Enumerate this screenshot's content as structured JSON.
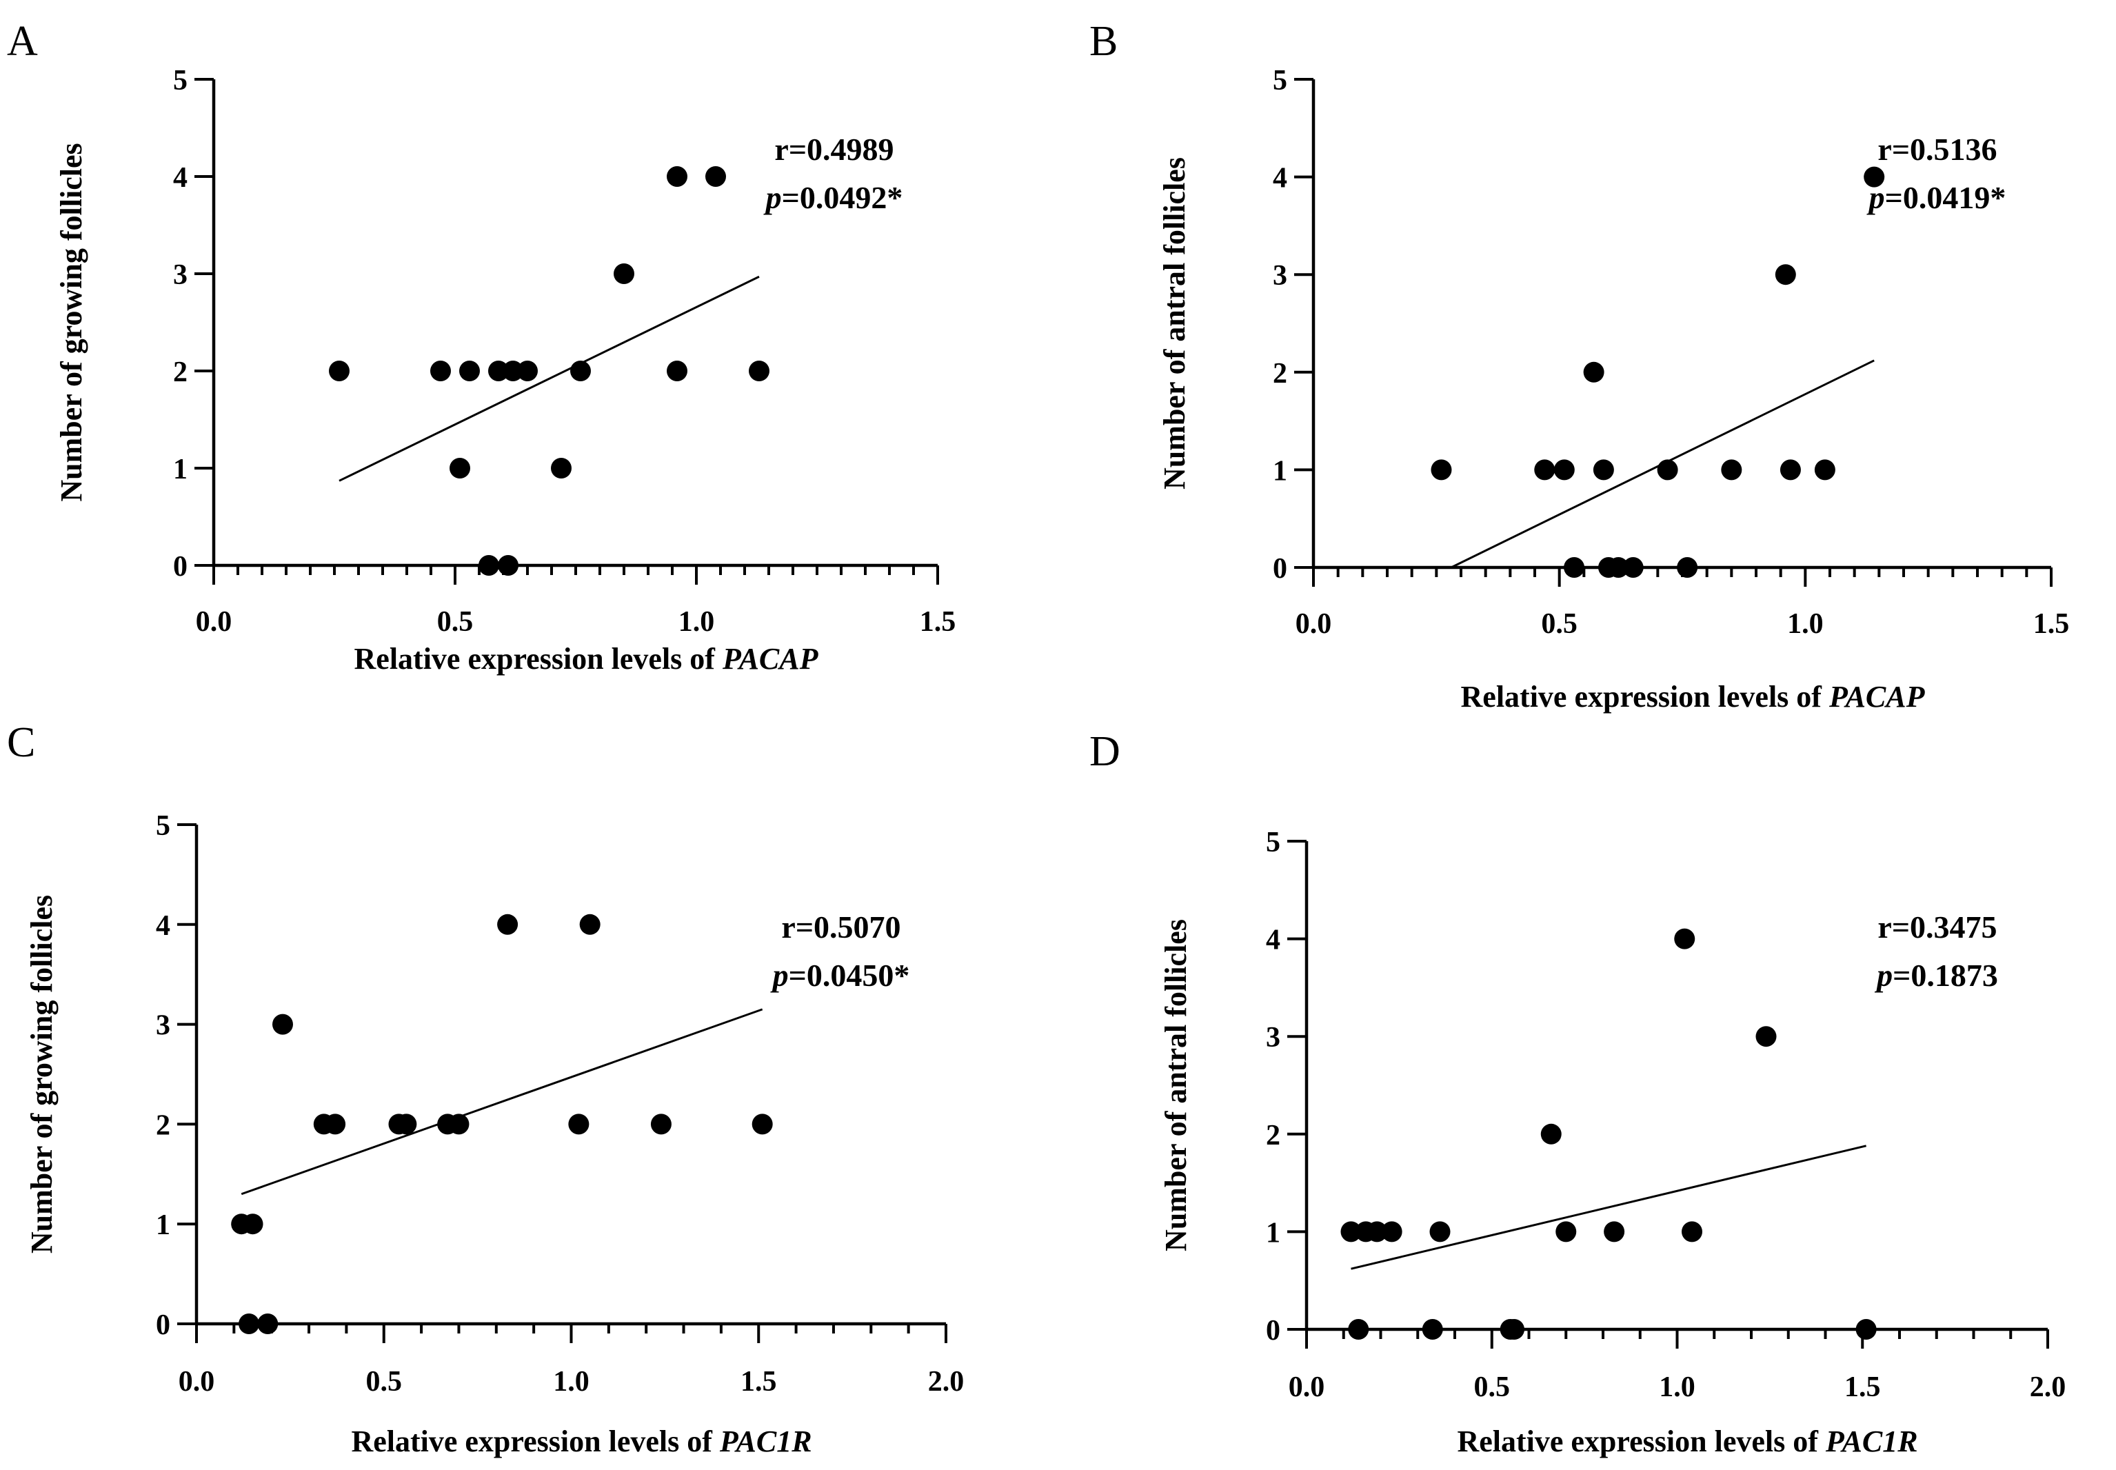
{
  "chart_data": [
    {
      "panel": "A",
      "type": "scatter",
      "xlabel": "Relative expression levels of ",
      "xlabel_italic": "PACAP",
      "ylabel": "Number of growing  follicles",
      "xlim": [
        0,
        1.5
      ],
      "ylim": [
        0,
        5
      ],
      "xticks": [
        "0.0",
        "0.5",
        "1.0",
        "1.5"
      ],
      "xtick_values": [
        0,
        0.5,
        1.0,
        1.5
      ],
      "yticks": [
        "0",
        "1",
        "2",
        "3",
        "4",
        "5"
      ],
      "ytick_values": [
        0,
        1,
        2,
        3,
        4,
        5
      ],
      "x_minor_step": 0.05,
      "stat_r": "r=0.4989",
      "stat_p_label": "p",
      "stat_p_value": "=0.0492*",
      "points": [
        [
          0.26,
          2
        ],
        [
          0.47,
          2
        ],
        [
          0.51,
          1
        ],
        [
          0.53,
          2
        ],
        [
          0.57,
          0
        ],
        [
          0.59,
          2
        ],
        [
          0.61,
          0
        ],
        [
          0.62,
          2
        ],
        [
          0.65,
          2
        ],
        [
          0.72,
          1
        ],
        [
          0.76,
          2
        ],
        [
          0.85,
          3
        ],
        [
          0.96,
          4
        ],
        [
          0.96,
          2
        ],
        [
          1.04,
          4
        ],
        [
          1.13,
          2
        ]
      ],
      "fit_line": [
        [
          0.26,
          0.87
        ],
        [
          1.13,
          2.97
        ]
      ]
    },
    {
      "panel": "B",
      "type": "scatter",
      "xlabel": "Relative expression levels of ",
      "xlabel_italic": "PACAP",
      "ylabel": "Number of antral  follicles",
      "xlim": [
        0,
        1.5
      ],
      "ylim": [
        0,
        5
      ],
      "xticks": [
        "0.0",
        "0.5",
        "1.0",
        "1.5"
      ],
      "xtick_values": [
        0,
        0.5,
        1.0,
        1.5
      ],
      "yticks": [
        "0",
        "1",
        "2",
        "3",
        "4",
        "5"
      ],
      "ytick_values": [
        0,
        1,
        2,
        3,
        4,
        5
      ],
      "x_minor_step": 0.05,
      "stat_r": "r=0.5136",
      "stat_p_label": "p",
      "stat_p_value": "=0.0419*",
      "points": [
        [
          0.26,
          1
        ],
        [
          0.47,
          1
        ],
        [
          0.51,
          1
        ],
        [
          0.53,
          0
        ],
        [
          0.57,
          2
        ],
        [
          0.59,
          1
        ],
        [
          0.6,
          0
        ],
        [
          0.62,
          0
        ],
        [
          0.65,
          0
        ],
        [
          0.72,
          1
        ],
        [
          0.76,
          0
        ],
        [
          0.85,
          1
        ],
        [
          0.96,
          3
        ],
        [
          0.97,
          1
        ],
        [
          1.04,
          1
        ],
        [
          1.14,
          4
        ]
      ],
      "fit_line": [
        [
          0.28,
          0
        ],
        [
          1.14,
          2.12
        ]
      ]
    },
    {
      "panel": "C",
      "type": "scatter",
      "xlabel": "Relative expression levels of ",
      "xlabel_italic": "PAC1R",
      "ylabel": "Number of growing  follicles",
      "xlim": [
        0,
        2.0
      ],
      "ylim": [
        0,
        5
      ],
      "xticks": [
        "0.0",
        "0.5",
        "1.0",
        "1.5",
        "2.0"
      ],
      "xtick_values": [
        0,
        0.5,
        1.0,
        1.5,
        2.0
      ],
      "yticks": [
        "0",
        "1",
        "2",
        "3",
        "4",
        "5"
      ],
      "ytick_values": [
        0,
        1,
        2,
        3,
        4,
        5
      ],
      "x_minor_step": 0.1,
      "stat_r": "r=0.5070",
      "stat_p_label": "p",
      "stat_p_value": "=0.0450*",
      "points": [
        [
          0.12,
          1
        ],
        [
          0.15,
          1
        ],
        [
          0.14,
          0
        ],
        [
          0.19,
          0
        ],
        [
          0.23,
          3
        ],
        [
          0.34,
          2
        ],
        [
          0.37,
          2
        ],
        [
          0.54,
          2
        ],
        [
          0.56,
          2
        ],
        [
          0.67,
          2
        ],
        [
          0.7,
          2
        ],
        [
          0.83,
          4
        ],
        [
          1.02,
          2
        ],
        [
          1.05,
          4
        ],
        [
          1.24,
          2
        ],
        [
          1.51,
          2
        ]
      ],
      "fit_line": [
        [
          0.12,
          1.3
        ],
        [
          1.51,
          3.15
        ]
      ]
    },
    {
      "panel": "D",
      "type": "scatter",
      "xlabel": "Relative expression levels of ",
      "xlabel_italic": "PAC1R",
      "ylabel": "Number of antral  follicles",
      "xlim": [
        0,
        2.0
      ],
      "ylim": [
        0,
        5
      ],
      "xticks": [
        "0.0",
        "0.5",
        "1.0",
        "1.5",
        "2.0"
      ],
      "xtick_values": [
        0,
        0.5,
        1.0,
        1.5,
        2.0
      ],
      "yticks": [
        "0",
        "1",
        "2",
        "3",
        "4",
        "5"
      ],
      "ytick_values": [
        0,
        1,
        2,
        3,
        4,
        5
      ],
      "x_minor_step": 0.1,
      "stat_r": "r=0.3475",
      "stat_p_label": "p",
      "stat_p_value": "=0.1873",
      "points": [
        [
          0.12,
          1
        ],
        [
          0.16,
          1
        ],
        [
          0.19,
          1
        ],
        [
          0.23,
          1
        ],
        [
          0.14,
          0
        ],
        [
          0.36,
          1
        ],
        [
          0.34,
          0
        ],
        [
          0.55,
          0
        ],
        [
          0.56,
          0
        ],
        [
          0.66,
          2
        ],
        [
          0.7,
          1
        ],
        [
          0.83,
          1
        ],
        [
          1.02,
          4
        ],
        [
          1.04,
          1
        ],
        [
          1.24,
          3
        ],
        [
          1.51,
          0
        ]
      ],
      "fit_line": [
        [
          0.12,
          0.62
        ],
        [
          1.51,
          1.88
        ]
      ]
    }
  ]
}
